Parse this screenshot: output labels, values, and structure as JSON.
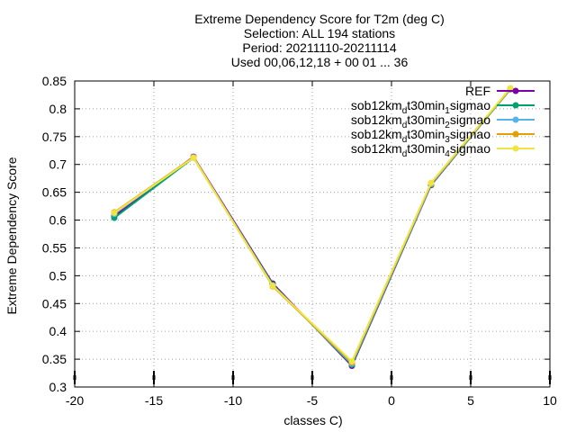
{
  "chart_data": {
    "type": "line",
    "title_lines": [
      "Extreme Dependency Score  for T2m (deg C)",
      "Selection: ALL    194 stations",
      "Period: 20211110-20211114",
      "Used 00,06,12,18 + 00 01 ... 36"
    ],
    "xlabel": "classes C)",
    "ylabel": "Extreme Dependency Score",
    "xlim": [
      -20,
      10
    ],
    "ylim": [
      0.3,
      0.85
    ],
    "x_ticks": [
      -20,
      -15,
      -10,
      -5,
      0,
      5,
      10
    ],
    "x_tick_labels": [
      "-20",
      "-15",
      "-10",
      "-5",
      "0",
      "5",
      "10"
    ],
    "y_ticks": [
      0.3,
      0.35,
      0.4,
      0.45,
      0.5,
      0.55,
      0.6,
      0.65,
      0.7,
      0.75,
      0.8,
      0.85
    ],
    "y_tick_labels": [
      "0.3",
      "0.35",
      "0.4",
      "0.45",
      "0.5",
      "0.55",
      "0.6",
      "0.65",
      "0.7",
      "0.75",
      "0.8",
      "0.85"
    ],
    "grid": true,
    "legend_position": "top-right",
    "x": [
      -17.5,
      -12.5,
      -7.5,
      -2.5,
      2.5,
      7.5
    ],
    "series": [
      {
        "name": "REF",
        "name_parts": [
          {
            "t": "REF",
            "sub": false
          }
        ],
        "color": "#7b00a8",
        "marker": "circle",
        "values": [
          0.607,
          0.714,
          0.486,
          0.338,
          0.663,
          0.836
        ]
      },
      {
        "name": "sob12km_dt30min_1sigmao",
        "name_parts": [
          {
            "t": "sob12km",
            "sub": false
          },
          {
            "t": "d",
            "sub": true
          },
          {
            "t": "t30min",
            "sub": false
          },
          {
            "t": "1",
            "sub": true
          },
          {
            "t": "sigmao",
            "sub": false
          }
        ],
        "color": "#00a070",
        "marker": "circle",
        "values": [
          0.604,
          0.712,
          0.484,
          0.34,
          0.664,
          0.835
        ]
      },
      {
        "name": "sob12km_dt30min_2sigmao",
        "name_parts": [
          {
            "t": "sob12km",
            "sub": false
          },
          {
            "t": "d",
            "sub": true
          },
          {
            "t": "t30min",
            "sub": false
          },
          {
            "t": "2",
            "sub": true
          },
          {
            "t": "sigmao",
            "sub": false
          }
        ],
        "color": "#56b4e9",
        "marker": "circle",
        "values": [
          0.611,
          0.713,
          0.482,
          0.342,
          0.665,
          0.836
        ]
      },
      {
        "name": "sob12km_dt30min_3sigmao",
        "name_parts": [
          {
            "t": "sob12km",
            "sub": false
          },
          {
            "t": "d",
            "sub": true
          },
          {
            "t": "t30min",
            "sub": false
          },
          {
            "t": "3",
            "sub": true
          },
          {
            "t": "sigmao",
            "sub": false
          }
        ],
        "color": "#e69f00",
        "marker": "circle",
        "values": [
          0.614,
          0.713,
          0.481,
          0.344,
          0.666,
          0.836
        ]
      },
      {
        "name": "sob12km_dt30min_4sigmao",
        "name_parts": [
          {
            "t": "sob12km",
            "sub": false
          },
          {
            "t": "d",
            "sub": true
          },
          {
            "t": "t30min",
            "sub": false
          },
          {
            "t": "4",
            "sub": true
          },
          {
            "t": "sigmao",
            "sub": false
          }
        ],
        "color": "#f0e442",
        "marker": "circle",
        "values": [
          0.613,
          0.712,
          0.482,
          0.346,
          0.667,
          0.837
        ]
      }
    ]
  }
}
